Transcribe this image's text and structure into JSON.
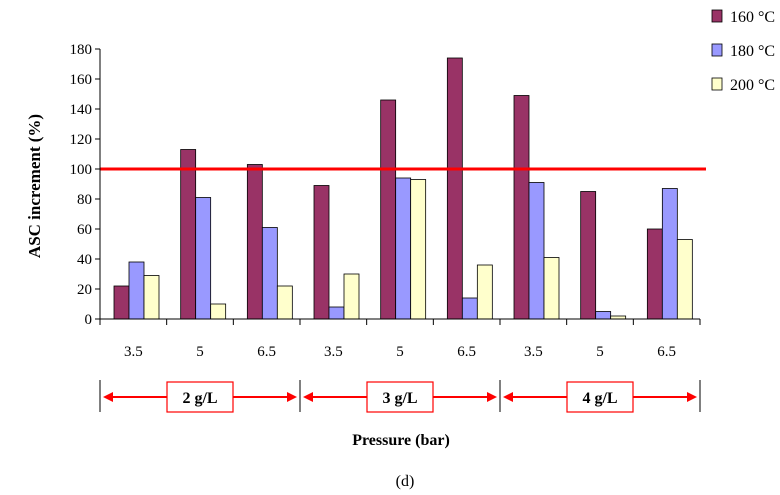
{
  "chart_data": {
    "type": "bar",
    "ylabel": "ASC increment (%)",
    "xlabel": "Pressure (bar)",
    "caption": "(d)",
    "ylim": [
      0,
      180
    ],
    "yticks": [
      "0",
      "20",
      "40",
      "60",
      "80",
      "100",
      "120",
      "140",
      "160",
      "180"
    ],
    "categories": [
      "3.5",
      "5",
      "6.5",
      "3.5",
      "5",
      "6.5",
      "3.5",
      "5",
      "6.5"
    ],
    "groups": [
      "2 g/L",
      "3 g/L",
      "4 g/L"
    ],
    "reference_line": 100,
    "legend_position": "top-right",
    "series": [
      {
        "name": "160 °C",
        "color": "#993366",
        "values": [
          22,
          113,
          103,
          89,
          146,
          174,
          149,
          85,
          60
        ]
      },
      {
        "name": "180 °C",
        "color": "#9999ff",
        "values": [
          38,
          81,
          61,
          8,
          94,
          14,
          91,
          5,
          87
        ]
      },
      {
        "name": "200 °C",
        "color": "#ffffcc",
        "values": [
          29,
          10,
          22,
          30,
          93,
          36,
          41,
          2,
          53
        ]
      }
    ],
    "colors": {
      "reference": "#ff0000",
      "arrow": "#ff0000",
      "box_border": "#ff0000"
    }
  }
}
